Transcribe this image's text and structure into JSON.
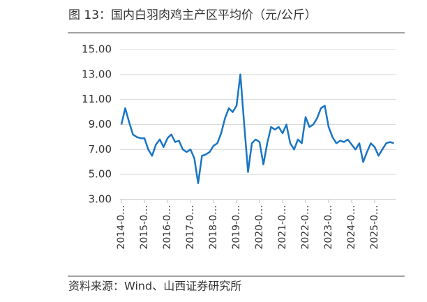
{
  "chart_data": {
    "type": "line",
    "title": "图 13：国内白羽肉鸡主产区平均价（元/公斤）",
    "source": "资料来源：Wind、山西证券研究所",
    "categories": [
      "2014-0…",
      null,
      null,
      null,
      null,
      null,
      "2015-0…",
      null,
      null,
      null,
      null,
      null,
      "2016-0…",
      null,
      null,
      null,
      null,
      null,
      "2017-0…",
      null,
      null,
      null,
      null,
      null,
      "2018-0…",
      null,
      null,
      null,
      null,
      null,
      "2019-0…",
      null,
      null,
      null,
      null,
      null,
      "2020-0…",
      null,
      null,
      null,
      null,
      null,
      "2021-0…",
      null,
      null,
      null,
      null,
      null,
      "2022-0…",
      null,
      null,
      null,
      null,
      null,
      "2023-0…",
      null,
      null,
      null,
      null,
      null,
      "2024-0…",
      null,
      null,
      null,
      null,
      null,
      "2025-0…",
      null,
      null,
      null,
      null,
      null
    ],
    "series": [
      {
        "color": "#1a75c4",
        "values": [
          9.0,
          10.3,
          9.2,
          8.2,
          8.0,
          7.9,
          7.9,
          7.0,
          6.5,
          7.4,
          7.8,
          7.2,
          7.9,
          8.2,
          7.6,
          7.7,
          7.0,
          6.8,
          7.0,
          6.3,
          4.3,
          6.5,
          6.6,
          6.8,
          7.3,
          7.5,
          8.3,
          9.5,
          10.3,
          10.0,
          10.5,
          13.0,
          9.0,
          5.2,
          7.5,
          7.8,
          7.6,
          5.8,
          7.5,
          8.8,
          8.6,
          8.8,
          8.3,
          9.0,
          7.5,
          7.0,
          7.8,
          7.5,
          9.6,
          8.8,
          9.0,
          9.5,
          10.3,
          10.5,
          8.8,
          8.0,
          7.5,
          7.7,
          7.6,
          7.8,
          7.4,
          7.0,
          7.5,
          6.0,
          6.8,
          7.5,
          7.2,
          6.5,
          7.0,
          7.5,
          7.6,
          7.5
        ]
      }
    ],
    "ylim": [
      3,
      15
    ],
    "yticks": [
      {
        "value": 3,
        "label": "3.00"
      },
      {
        "value": 5,
        "label": "5.00"
      },
      {
        "value": 7,
        "label": "7.00"
      },
      {
        "value": 9,
        "label": "9.00"
      },
      {
        "value": 11,
        "label": "11.00"
      },
      {
        "value": 13,
        "label": "13.00"
      },
      {
        "value": 15,
        "label": "15.00"
      }
    ],
    "grid": true
  }
}
